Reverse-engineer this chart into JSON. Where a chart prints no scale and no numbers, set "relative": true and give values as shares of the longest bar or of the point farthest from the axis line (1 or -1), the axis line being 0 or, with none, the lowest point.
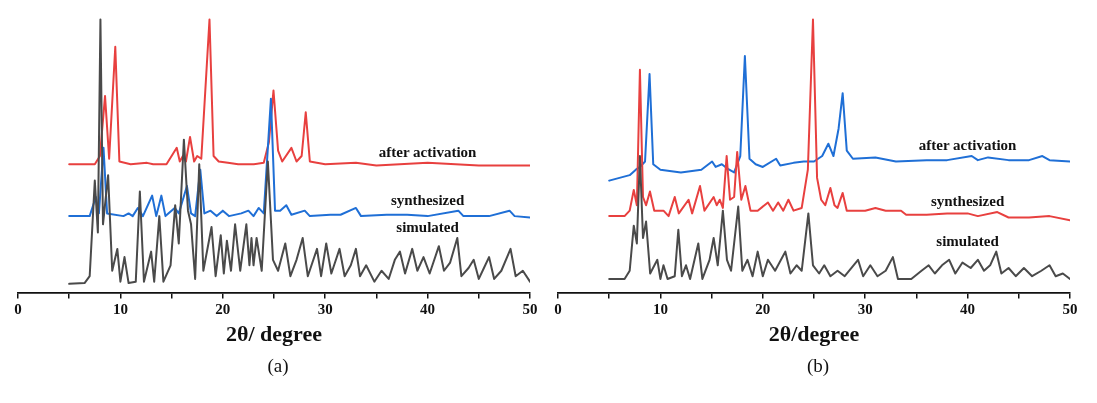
{
  "chart_data": [
    {
      "type": "line",
      "relative": true,
      "xlabel": "2θ/ degree",
      "xlim": [
        0,
        50
      ],
      "xticks": [
        0,
        {
          "value": 5,
          "label": null
        },
        10,
        {
          "value": 15,
          "label": null
        },
        20,
        {
          "value": 25,
          "label": null
        },
        30,
        {
          "value": 35,
          "label": null
        },
        40,
        {
          "value": 45,
          "label": null
        },
        50
      ],
      "legend": false,
      "annotations": [
        "(a)"
      ],
      "series": [
        {
          "name": "simulated",
          "color": "#4a4a4a",
          "x": [
            5,
            6.5,
            7.0,
            7.5,
            7.8,
            8.05,
            8.3,
            8.8,
            9.2,
            9.7,
            10.0,
            10.4,
            10.8,
            11.5,
            11.9,
            12.3,
            13.0,
            13.3,
            13.8,
            14.2,
            14.9,
            15.35,
            15.7,
            16.2,
            16.6,
            16.9,
            17.3,
            17.7,
            18.1,
            18.9,
            19.3,
            19.8,
            20.1,
            20.4,
            20.8,
            21.2,
            21.7,
            22.3,
            22.6,
            22.8,
            23.0,
            23.3,
            23.8,
            24.4,
            24.9,
            25.4,
            26.1,
            26.6,
            27.2,
            27.8,
            28.3,
            29.2,
            29.6,
            30.1,
            30.6,
            31.4,
            31.9,
            32.5,
            33.0,
            33.4,
            34.0,
            34.8,
            35.5,
            36.2,
            36.8,
            37.3,
            37.8,
            38.5,
            39.0,
            39.6,
            40.2,
            41.1,
            41.6,
            42.2,
            42.9,
            43.3,
            44.0,
            44.5,
            45.0,
            45.5,
            46.0,
            46.5,
            47.2,
            48.1,
            48.6,
            49.3,
            50
          ],
          "values": [
            0.032,
            0.035,
            0.06,
            0.41,
            0.22,
            1.0,
            0.25,
            0.43,
            0.08,
            0.16,
            0.04,
            0.13,
            0.035,
            0.04,
            0.37,
            0.04,
            0.15,
            0.04,
            0.28,
            0.04,
            0.1,
            0.32,
            0.18,
            0.56,
            0.3,
            0.25,
            0.05,
            0.47,
            0.08,
            0.24,
            0.06,
            0.21,
            0.07,
            0.19,
            0.08,
            0.25,
            0.08,
            0.25,
            0.1,
            0.2,
            0.1,
            0.2,
            0.08,
            0.48,
            0.12,
            0.08,
            0.18,
            0.06,
            0.12,
            0.2,
            0.06,
            0.16,
            0.06,
            0.18,
            0.07,
            0.16,
            0.06,
            0.1,
            0.16,
            0.06,
            0.1,
            0.04,
            0.08,
            0.05,
            0.12,
            0.15,
            0.07,
            0.16,
            0.08,
            0.13,
            0.07,
            0.17,
            0.08,
            0.11,
            0.2,
            0.06,
            0.09,
            0.12,
            0.05,
            0.09,
            0.13,
            0.05,
            0.08,
            0.16,
            0.06,
            0.08,
            0.04
          ]
        },
        {
          "name": "synthesized",
          "color": "#1f6fd6",
          "x": [
            5,
            7.0,
            7.6,
            7.9,
            8.35,
            8.7,
            10.3,
            10.8,
            11.2,
            11.7,
            12.2,
            13.1,
            13.5,
            14.0,
            14.4,
            15.3,
            15.7,
            16.5,
            16.9,
            17.3,
            17.8,
            18.2,
            18.8,
            19.4,
            20.0,
            20.6,
            21.8,
            22.5,
            23.0,
            23.5,
            24.0,
            24.7,
            25.1,
            25.6,
            26.2,
            26.7,
            28.0,
            28.5,
            30.5,
            31.5,
            33.0,
            33.5,
            36.0,
            38.0,
            40.0,
            43.0,
            43.5,
            46.0,
            48.0,
            48.5,
            50
          ],
          "values": [
            0.28,
            0.28,
            0.35,
            0.29,
            0.53,
            0.29,
            0.28,
            0.29,
            0.28,
            0.31,
            0.28,
            0.355,
            0.28,
            0.355,
            0.28,
            0.31,
            0.29,
            0.39,
            0.29,
            0.28,
            0.45,
            0.29,
            0.3,
            0.28,
            0.3,
            0.28,
            0.29,
            0.3,
            0.28,
            0.31,
            0.29,
            0.71,
            0.3,
            0.3,
            0.32,
            0.285,
            0.3,
            0.28,
            0.285,
            0.285,
            0.31,
            0.28,
            0.285,
            0.285,
            0.28,
            0.3,
            0.28,
            0.28,
            0.3,
            0.28,
            0.275
          ]
        },
        {
          "name": "after activation",
          "color": "#e8403f",
          "x": [
            5,
            7.5,
            8.0,
            8.5,
            8.9,
            9.5,
            9.9,
            11.0,
            12.6,
            13.2,
            14.5,
            15.5,
            15.8,
            16.1,
            16.4,
            16.8,
            17.2,
            17.5,
            17.9,
            18.7,
            19.1,
            19.6,
            20.5,
            21.5,
            23.0,
            24.0,
            24.5,
            24.95,
            25.4,
            25.8,
            26.7,
            27.2,
            27.7,
            28.1,
            28.5,
            30.0,
            33.0,
            35.0,
            40.0,
            45.0,
            50
          ],
          "values": [
            0.47,
            0.47,
            0.5,
            0.72,
            0.49,
            0.9,
            0.48,
            0.47,
            0.475,
            0.47,
            0.47,
            0.53,
            0.48,
            0.5,
            0.48,
            0.57,
            0.48,
            0.5,
            0.49,
            1.0,
            0.5,
            0.48,
            0.475,
            0.47,
            0.47,
            0.475,
            0.55,
            0.74,
            0.52,
            0.48,
            0.53,
            0.48,
            0.5,
            0.66,
            0.48,
            0.47,
            0.475,
            0.465,
            0.475,
            0.465,
            0.465
          ]
        }
      ]
    },
    {
      "type": "line",
      "relative": true,
      "xlabel": "2θ/degree",
      "xlim": [
        0,
        50
      ],
      "xticks": [
        0,
        {
          "value": 5,
          "label": null
        },
        10,
        {
          "value": 15,
          "label": null
        },
        20,
        {
          "value": 25,
          "label": null
        },
        30,
        {
          "value": 35,
          "label": null
        },
        40,
        {
          "value": 45,
          "label": null
        },
        50
      ],
      "legend": false,
      "annotations": [
        "(b)"
      ],
      "series": [
        {
          "name": "simulated",
          "color": "#4a4a4a",
          "x": [
            5,
            6.5,
            7.0,
            7.4,
            7.7,
            8.0,
            8.3,
            8.6,
            9.0,
            9.7,
            10.0,
            10.3,
            10.7,
            11.4,
            11.75,
            12.1,
            12.5,
            12.9,
            13.7,
            14.1,
            14.8,
            15.2,
            15.6,
            16.1,
            16.5,
            16.9,
            17.6,
            18.0,
            18.5,
            19.0,
            19.5,
            20.0,
            20.5,
            21.2,
            22.2,
            22.7,
            23.3,
            23.8,
            24.45,
            24.9,
            25.5,
            26.0,
            26.6,
            27.3,
            28.0,
            29.3,
            29.8,
            30.5,
            31.2,
            32.0,
            32.7,
            33.2,
            34.5,
            35.5,
            36.2,
            36.8,
            37.5,
            38.2,
            38.8,
            39.5,
            40.3,
            41.0,
            41.6,
            42.2,
            42.8,
            43.3,
            44.0,
            44.7,
            45.5,
            46.3,
            47.2,
            48.0,
            48.6,
            49.3,
            50
          ],
          "values": [
            0.05,
            0.05,
            0.08,
            0.245,
            0.18,
            0.5,
            0.2,
            0.26,
            0.07,
            0.12,
            0.05,
            0.1,
            0.05,
            0.06,
            0.23,
            0.06,
            0.1,
            0.05,
            0.18,
            0.05,
            0.12,
            0.2,
            0.1,
            0.3,
            0.12,
            0.08,
            0.315,
            0.08,
            0.12,
            0.06,
            0.15,
            0.06,
            0.12,
            0.08,
            0.15,
            0.07,
            0.1,
            0.08,
            0.29,
            0.1,
            0.07,
            0.1,
            0.06,
            0.08,
            0.06,
            0.12,
            0.06,
            0.1,
            0.06,
            0.08,
            0.13,
            0.05,
            0.05,
            0.08,
            0.1,
            0.07,
            0.1,
            0.12,
            0.07,
            0.11,
            0.09,
            0.12,
            0.08,
            0.1,
            0.15,
            0.07,
            0.09,
            0.06,
            0.09,
            0.06,
            0.08,
            0.1,
            0.06,
            0.07,
            0.05
          ]
        },
        {
          "name": "synthesized",
          "color": "#e8403f",
          "x": [
            5,
            6.5,
            7.0,
            7.4,
            7.7,
            8.0,
            8.3,
            8.6,
            8.98,
            9.4,
            10.3,
            10.8,
            11.4,
            11.8,
            12.75,
            13.1,
            13.87,
            14.3,
            15.2,
            15.5,
            15.8,
            16.1,
            16.47,
            16.8,
            17.2,
            17.5,
            17.9,
            18.3,
            18.8,
            19.5,
            20.5,
            21.0,
            21.5,
            22.0,
            22.5,
            23.0,
            23.8,
            24.4,
            24.9,
            25.3,
            25.7,
            26.1,
            26.6,
            27.0,
            27.3,
            27.8,
            28.2,
            29.0,
            30.0,
            31.0,
            32.0,
            33.5,
            34.0,
            36.0,
            38.0,
            39.0,
            40.0,
            41.0,
            42.9,
            44.0,
            46.0,
            48.0,
            50
          ],
          "values": [
            0.28,
            0.28,
            0.3,
            0.376,
            0.32,
            0.816,
            0.35,
            0.32,
            0.37,
            0.3,
            0.3,
            0.28,
            0.35,
            0.29,
            0.34,
            0.29,
            0.39,
            0.3,
            0.35,
            0.32,
            0.34,
            0.31,
            0.5,
            0.34,
            0.35,
            0.515,
            0.34,
            0.39,
            0.3,
            0.3,
            0.33,
            0.3,
            0.33,
            0.3,
            0.34,
            0.3,
            0.31,
            0.45,
            1.0,
            0.42,
            0.34,
            0.32,
            0.383,
            0.32,
            0.31,
            0.365,
            0.3,
            0.3,
            0.3,
            0.31,
            0.3,
            0.3,
            0.285,
            0.285,
            0.29,
            0.29,
            0.29,
            0.28,
            0.295,
            0.275,
            0.275,
            0.28,
            0.265
          ]
        },
        {
          "name": "after activation",
          "color": "#1f6fd6",
          "x": [
            5,
            6.0,
            7.0,
            7.6,
            8.0,
            8.5,
            8.94,
            9.3,
            10,
            12,
            14,
            15.05,
            15.4,
            16.0,
            16.5,
            17.2,
            17.8,
            18.25,
            18.7,
            19.3,
            20,
            21.3,
            21.7,
            23,
            24,
            25,
            25.8,
            26.4,
            26.9,
            27.4,
            27.8,
            28.2,
            28.8,
            31,
            33,
            36,
            38,
            40.4,
            41,
            42,
            44,
            46,
            47.3,
            48,
            50
          ],
          "values": [
            0.41,
            0.42,
            0.43,
            0.45,
            0.46,
            0.48,
            0.8,
            0.47,
            0.45,
            0.44,
            0.45,
            0.48,
            0.46,
            0.47,
            0.455,
            0.44,
            0.5,
            0.866,
            0.49,
            0.47,
            0.46,
            0.49,
            0.465,
            0.475,
            0.48,
            0.48,
            0.5,
            0.545,
            0.5,
            0.6,
            0.73,
            0.52,
            0.49,
            0.495,
            0.48,
            0.485,
            0.485,
            0.5,
            0.485,
            0.495,
            0.485,
            0.485,
            0.5,
            0.485,
            0.48
          ]
        }
      ]
    }
  ]
}
